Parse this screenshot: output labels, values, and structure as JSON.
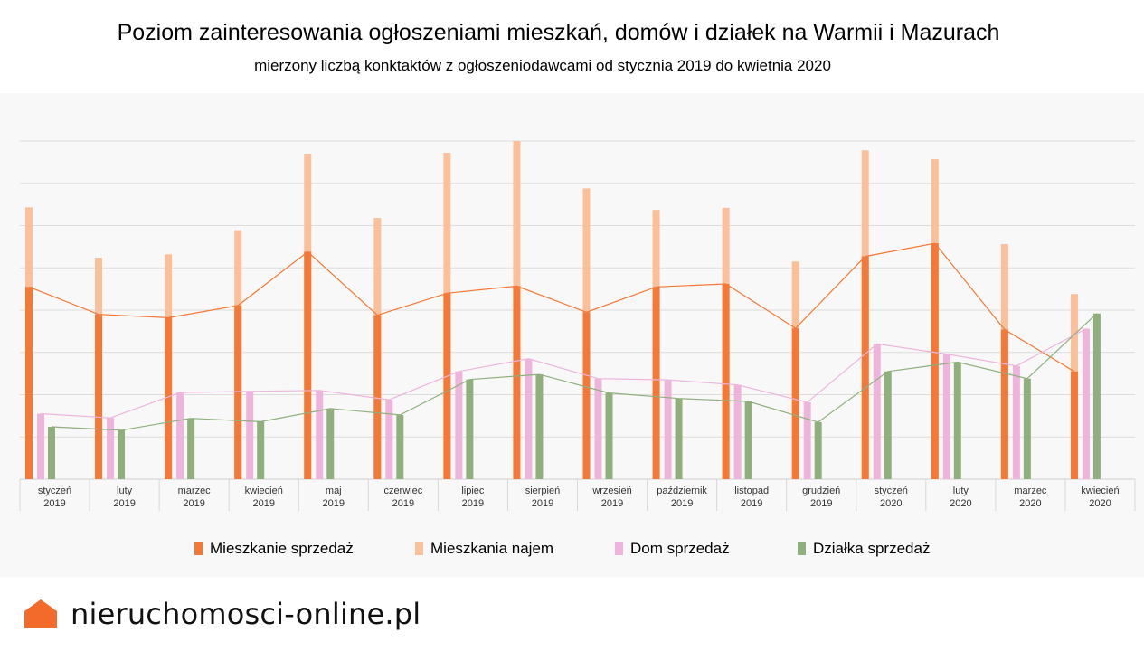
{
  "title": "Poziom zainteresowania ogłoszeniami mieszkań, domów i działek na Warmii i Mazurach",
  "subtitle": "mierzony liczbą konktaktów z ogłoszeniodawcami od stycznia 2019 do kwietnia 2020",
  "brand": {
    "name": "nieruchomosci-online.pl",
    "logo_icon": "house-icon",
    "logo_color": "#f26b2a"
  },
  "chart_data": {
    "type": "bar",
    "categories": [
      [
        "styczeń",
        "2019"
      ],
      [
        "luty",
        "2019"
      ],
      [
        "marzec",
        "2019"
      ],
      [
        "kwiecień",
        "2019"
      ],
      [
        "maj",
        "2019"
      ],
      [
        "czerwiec",
        "2019"
      ],
      [
        "lipiec",
        "2019"
      ],
      [
        "sierpień",
        "2019"
      ],
      [
        "wrzesień",
        "2019"
      ],
      [
        "październik",
        "2019"
      ],
      [
        "listopad",
        "2019"
      ],
      [
        "grudzień",
        "2019"
      ],
      [
        "styczeń",
        "2020"
      ],
      [
        "luty",
        "2020"
      ],
      [
        "marzec",
        "2020"
      ],
      [
        "kwiecień",
        "2020"
      ]
    ],
    "ylim": [
      0,
      8
    ],
    "grid": true,
    "y_tick_labels_shown": false,
    "overlay_lines": true,
    "legend_position": "bottom",
    "series": [
      {
        "name": "Mieszkanie sprzedaż",
        "color": "#f47937",
        "values": [
          4.55,
          3.9,
          3.82,
          4.11,
          5.38,
          3.88,
          4.4,
          4.57,
          3.95,
          4.55,
          4.62,
          3.57,
          5.27,
          5.58,
          3.54,
          2.55
        ]
      },
      {
        "name": "Mieszkania najem",
        "color": "#fbbf9a",
        "values": [
          6.43,
          5.24,
          5.32,
          5.89,
          7.7,
          6.18,
          7.72,
          8.0,
          6.88,
          6.37,
          6.42,
          5.15,
          7.78,
          7.57,
          5.56,
          4.38
        ]
      },
      {
        "name": "Dom sprzedaż",
        "color": "#eeb4dc",
        "values": [
          1.55,
          1.45,
          2.05,
          2.08,
          2.1,
          1.88,
          2.55,
          2.85,
          2.38,
          2.35,
          2.23,
          1.82,
          3.2,
          2.96,
          2.68,
          3.56
        ]
      },
      {
        "name": "Działka sprzedaż",
        "color": "#8fb07d",
        "values": [
          1.24,
          1.16,
          1.44,
          1.36,
          1.67,
          1.52,
          2.36,
          2.48,
          2.04,
          1.91,
          1.84,
          1.35,
          2.55,
          2.77,
          2.38,
          3.92
        ]
      }
    ]
  }
}
